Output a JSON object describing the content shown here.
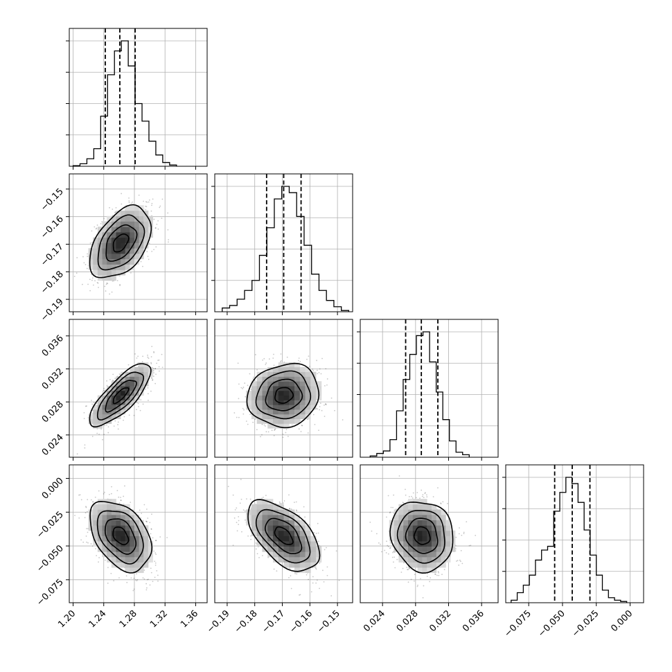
{
  "chart_data": {
    "type": "corner",
    "n_parameters": 4,
    "grid": true,
    "parameters": [
      {
        "ticks": [
          "1.20",
          "1.24",
          "1.28",
          "1.32",
          "1.36"
        ],
        "tick_values": [
          1.2,
          1.24,
          1.28,
          1.32,
          1.36
        ],
        "range": [
          1.195,
          1.375
        ],
        "mean": 1.262,
        "sd": 0.02,
        "quantiles": [
          1.242,
          1.261,
          1.281
        ],
        "hist": [
          {
            "x0": 1.2,
            "x1": 1.209,
            "h": 0.005
          },
          {
            "x0": 1.209,
            "x1": 1.218,
            "h": 0.02
          },
          {
            "x0": 1.218,
            "x1": 1.227,
            "h": 0.06
          },
          {
            "x0": 1.227,
            "x1": 1.236,
            "h": 0.14
          },
          {
            "x0": 1.236,
            "x1": 1.245,
            "h": 0.4
          },
          {
            "x0": 1.245,
            "x1": 1.254,
            "h": 0.73
          },
          {
            "x0": 1.254,
            "x1": 1.263,
            "h": 0.92
          },
          {
            "x0": 1.263,
            "x1": 1.272,
            "h": 1.0
          },
          {
            "x0": 1.272,
            "x1": 1.281,
            "h": 0.8
          },
          {
            "x0": 1.281,
            "x1": 1.29,
            "h": 0.5
          },
          {
            "x0": 1.29,
            "x1": 1.299,
            "h": 0.36
          },
          {
            "x0": 1.299,
            "x1": 1.308,
            "h": 0.2
          },
          {
            "x0": 1.308,
            "x1": 1.317,
            "h": 0.09
          },
          {
            "x0": 1.317,
            "x1": 1.326,
            "h": 0.03
          },
          {
            "x0": 1.326,
            "x1": 1.335,
            "h": 0.01
          }
        ]
      },
      {
        "ticks": [
          "−0.15",
          "−0.16",
          "−0.17",
          "−0.18",
          "−0.19"
        ],
        "tick_values": [
          -0.15,
          -0.16,
          -0.17,
          -0.18,
          -0.19
        ],
        "range": [
          -0.1945,
          -0.1445
        ],
        "mean": -0.1695,
        "sd": 0.0065,
        "quantiles": [
          -0.1757,
          -0.1695,
          -0.1632
        ],
        "hist": [
          {
            "x0": -0.1918,
            "x1": -0.1891,
            "h": 0.03
          },
          {
            "x0": -0.1891,
            "x1": -0.1864,
            "h": 0.05
          },
          {
            "x0": -0.1864,
            "x1": -0.1837,
            "h": 0.1
          },
          {
            "x0": -0.1837,
            "x1": -0.181,
            "h": 0.17
          },
          {
            "x0": -0.181,
            "x1": -0.1783,
            "h": 0.25
          },
          {
            "x0": -0.1783,
            "x1": -0.1756,
            "h": 0.45
          },
          {
            "x0": -0.1756,
            "x1": -0.1729,
            "h": 0.67
          },
          {
            "x0": -0.1729,
            "x1": -0.1702,
            "h": 0.9
          },
          {
            "x0": -0.1702,
            "x1": -0.1675,
            "h": 1.0
          },
          {
            "x0": -0.1675,
            "x1": -0.1648,
            "h": 0.95
          },
          {
            "x0": -0.1648,
            "x1": -0.1621,
            "h": 0.76
          },
          {
            "x0": -0.1621,
            "x1": -0.1594,
            "h": 0.53
          },
          {
            "x0": -0.1594,
            "x1": -0.1567,
            "h": 0.3
          },
          {
            "x0": -0.1567,
            "x1": -0.154,
            "h": 0.17
          },
          {
            "x0": -0.154,
            "x1": -0.1513,
            "h": 0.09
          },
          {
            "x0": -0.1513,
            "x1": -0.1486,
            "h": 0.04
          },
          {
            "x0": -0.1486,
            "x1": -0.1459,
            "h": 0.01
          }
        ]
      },
      {
        "ticks": [
          "0.024",
          "0.028",
          "0.032",
          "0.036"
        ],
        "tick_values": [
          0.024,
          0.028,
          0.032,
          0.036
        ],
        "range": [
          0.0213,
          0.038
        ],
        "mean": 0.0288,
        "sd": 0.0019,
        "quantiles": [
          0.0268,
          0.0287,
          0.0307
        ],
        "hist": [
          {
            "x0": 0.0225,
            "x1": 0.0233,
            "h": 0.01
          },
          {
            "x0": 0.0233,
            "x1": 0.0241,
            "h": 0.03
          },
          {
            "x0": 0.0241,
            "x1": 0.0249,
            "h": 0.05
          },
          {
            "x0": 0.0249,
            "x1": 0.0257,
            "h": 0.14
          },
          {
            "x0": 0.0257,
            "x1": 0.0265,
            "h": 0.37
          },
          {
            "x0": 0.0265,
            "x1": 0.0273,
            "h": 0.62
          },
          {
            "x0": 0.0273,
            "x1": 0.0281,
            "h": 0.82
          },
          {
            "x0": 0.0281,
            "x1": 0.0289,
            "h": 0.97
          },
          {
            "x0": 0.0289,
            "x1": 0.0297,
            "h": 1.0
          },
          {
            "x0": 0.0297,
            "x1": 0.0305,
            "h": 0.76
          },
          {
            "x0": 0.0305,
            "x1": 0.0313,
            "h": 0.52
          },
          {
            "x0": 0.0313,
            "x1": 0.0321,
            "h": 0.3
          },
          {
            "x0": 0.0321,
            "x1": 0.0329,
            "h": 0.13
          },
          {
            "x0": 0.0329,
            "x1": 0.0337,
            "h": 0.04
          },
          {
            "x0": 0.0337,
            "x1": 0.0345,
            "h": 0.02
          }
        ]
      },
      {
        "ticks": [
          "−0.075",
          "−0.050",
          "−0.025",
          "0.000"
        ],
        "tick_values": [
          -0.075,
          -0.05,
          -0.025,
          0.0
        ],
        "range": [
          -0.092,
          0.01
        ],
        "mean": -0.0425,
        "sd": 0.013,
        "quantiles": [
          -0.0558,
          -0.0428,
          -0.0297
        ],
        "hist": [
          {
            "x0": -0.088,
            "x1": -0.0835,
            "h": 0.02
          },
          {
            "x0": -0.0835,
            "x1": -0.079,
            "h": 0.08
          },
          {
            "x0": -0.079,
            "x1": -0.0745,
            "h": 0.14
          },
          {
            "x0": -0.0745,
            "x1": -0.07,
            "h": 0.22
          },
          {
            "x0": -0.07,
            "x1": -0.0655,
            "h": 0.34
          },
          {
            "x0": -0.0655,
            "x1": -0.061,
            "h": 0.42
          },
          {
            "x0": -0.061,
            "x1": -0.0565,
            "h": 0.45
          },
          {
            "x0": -0.0565,
            "x1": -0.052,
            "h": 0.73
          },
          {
            "x0": -0.052,
            "x1": -0.0475,
            "h": 0.88
          },
          {
            "x0": -0.0475,
            "x1": -0.043,
            "h": 1.0
          },
          {
            "x0": -0.043,
            "x1": -0.0385,
            "h": 0.95
          },
          {
            "x0": -0.0385,
            "x1": -0.034,
            "h": 0.8
          },
          {
            "x0": -0.034,
            "x1": -0.0295,
            "h": 0.58
          },
          {
            "x0": -0.0295,
            "x1": -0.025,
            "h": 0.38
          },
          {
            "x0": -0.025,
            "x1": -0.0205,
            "h": 0.22
          },
          {
            "x0": -0.0205,
            "x1": -0.016,
            "h": 0.1
          },
          {
            "x0": -0.016,
            "x1": -0.0115,
            "h": 0.04
          },
          {
            "x0": -0.0115,
            "x1": -0.007,
            "h": 0.02
          },
          {
            "x0": -0.007,
            "x1": -0.0025,
            "h": 0.01
          }
        ]
      }
    ],
    "pairs": [
      {
        "row": 1,
        "col": 0,
        "center": [
          1.262,
          -0.1695
        ],
        "corr": 0.45
      },
      {
        "row": 2,
        "col": 0,
        "center": [
          1.262,
          0.0288
        ],
        "corr": 0.78
      },
      {
        "row": 2,
        "col": 1,
        "center": [
          -0.1695,
          0.0288
        ],
        "corr": 0.1
      },
      {
        "row": 3,
        "col": 0,
        "center": [
          1.262,
          -0.0425
        ],
        "corr": -0.4
      },
      {
        "row": 3,
        "col": 1,
        "center": [
          -0.1695,
          -0.0425
        ],
        "corr": -0.55
      },
      {
        "row": 3,
        "col": 2,
        "center": [
          0.0288,
          -0.0425
        ],
        "corr": -0.1
      }
    ],
    "contour_levels_sigma": [
      0.5,
      1.0,
      1.5,
      2.0
    ],
    "colors": {
      "line": "#000000",
      "grid": "#b0b0b0",
      "density_high": "#1a1a1a",
      "density_low": "#f4f4f4",
      "scatter": "#9a9a9a"
    }
  }
}
